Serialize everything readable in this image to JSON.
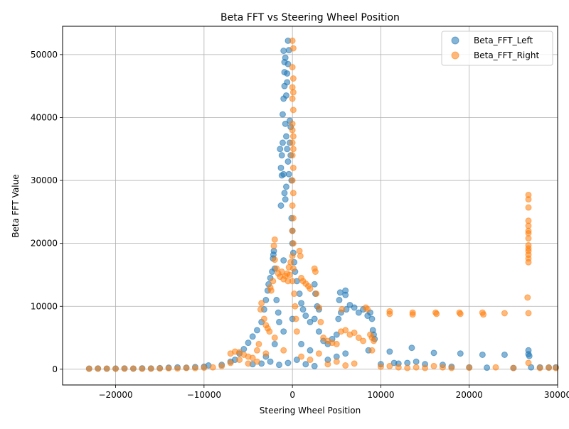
{
  "chart_data": {
    "type": "scatter",
    "title": "Beta FFT vs Steering Wheel Position",
    "xlabel": "Steering Wheel Position",
    "ylabel": "Beta FFT Value",
    "xlim": [
      -26000,
      30000
    ],
    "ylim": [
      -2500,
      54500
    ],
    "xticks": [
      -20000,
      -10000,
      0,
      10000,
      20000,
      30000
    ],
    "yticks": [
      0,
      10000,
      20000,
      30000,
      40000,
      50000
    ],
    "grid": true,
    "legend_position": "top-right",
    "series": [
      {
        "name": "Beta_FFT_Left",
        "color": "#1f77b4",
        "points": [
          [
            -23000,
            100
          ],
          [
            -22000,
            120
          ],
          [
            -21000,
            90
          ],
          [
            -20000,
            110
          ],
          [
            -19000,
            130
          ],
          [
            -18000,
            100
          ],
          [
            -17000,
            140
          ],
          [
            -16000,
            120
          ],
          [
            -15000,
            180
          ],
          [
            -14000,
            250
          ],
          [
            -13000,
            300
          ],
          [
            -12000,
            250
          ],
          [
            -11000,
            350
          ],
          [
            -10000,
            400
          ],
          [
            -9500,
            600
          ],
          [
            -8000,
            700
          ],
          [
            -7000,
            1200
          ],
          [
            -6500,
            1500
          ],
          [
            -6000,
            2500
          ],
          [
            -5500,
            3200
          ],
          [
            -5000,
            4200
          ],
          [
            -4500,
            5200
          ],
          [
            -4000,
            6200
          ],
          [
            -3500,
            7500
          ],
          [
            -3200,
            9500
          ],
          [
            -3000,
            11000
          ],
          [
            -2800,
            12500
          ],
          [
            -2700,
            13500
          ],
          [
            -2500,
            14500
          ],
          [
            -2300,
            15500
          ],
          [
            -2200,
            17600
          ],
          [
            -2150,
            18200
          ],
          [
            -2100,
            18800
          ],
          [
            -2000,
            16000
          ],
          [
            -1800,
            11000
          ],
          [
            -1600,
            9000
          ],
          [
            -1500,
            7500
          ],
          [
            -1300,
            26000
          ],
          [
            -1200,
            30800
          ],
          [
            -1100,
            40500
          ],
          [
            -1000,
            17300
          ],
          [
            -1000,
            43000
          ],
          [
            -900,
            47200
          ],
          [
            -900,
            45000
          ],
          [
            -1000,
            50600
          ],
          [
            -800,
            49500
          ],
          [
            -900,
            48800
          ],
          [
            -700,
            43500
          ],
          [
            -600,
            47000
          ],
          [
            -600,
            45600
          ],
          [
            -500,
            52200
          ],
          [
            -500,
            48500
          ],
          [
            -400,
            50700
          ],
          [
            -800,
            39000
          ],
          [
            -700,
            37000
          ],
          [
            -600,
            35000
          ],
          [
            -500,
            33000
          ],
          [
            -400,
            31000
          ],
          [
            -300,
            36000
          ],
          [
            -200,
            34000
          ],
          [
            -100,
            30000
          ],
          [
            -1100,
            36000
          ],
          [
            -1200,
            34000
          ],
          [
            -1300,
            32000
          ],
          [
            -1400,
            35000
          ],
          [
            -1000,
            31000
          ],
          [
            -900,
            28000
          ],
          [
            -800,
            27000
          ],
          [
            -700,
            29000
          ],
          [
            0,
            22000
          ],
          [
            0,
            20000
          ],
          [
            100,
            18500
          ],
          [
            200,
            17000
          ],
          [
            300,
            15500
          ],
          [
            500,
            14000
          ],
          [
            800,
            12000
          ],
          [
            1000,
            10500
          ],
          [
            1200,
            9500
          ],
          [
            1500,
            8500
          ],
          [
            2000,
            7500
          ],
          [
            2500,
            8000
          ],
          [
            3000,
            6000
          ],
          [
            3500,
            4500
          ],
          [
            4000,
            4000
          ],
          [
            4500,
            4800
          ],
          [
            5000,
            5500
          ],
          [
            5200,
            8000
          ],
          [
            5300,
            11000
          ],
          [
            5400,
            12200
          ],
          [
            5500,
            9000
          ],
          [
            6000,
            12500
          ],
          [
            6000,
            11800
          ],
          [
            6100,
            9500
          ],
          [
            6500,
            10200
          ],
          [
            7000,
            9800
          ],
          [
            7500,
            9000
          ],
          [
            8000,
            9500
          ],
          [
            8500,
            8500
          ],
          [
            8800,
            9000
          ],
          [
            9000,
            8000
          ],
          [
            9100,
            6200
          ],
          [
            9200,
            5500
          ],
          [
            9300,
            4800
          ],
          [
            8600,
            3000
          ],
          [
            6000,
            2500
          ],
          [
            5000,
            2000
          ],
          [
            4000,
            1500
          ],
          [
            10000,
            800
          ],
          [
            11000,
            2800
          ],
          [
            11500,
            1000
          ],
          [
            12000,
            900
          ],
          [
            13000,
            1000
          ],
          [
            13500,
            3400
          ],
          [
            14000,
            1200
          ],
          [
            15000,
            800
          ],
          [
            16000,
            2600
          ],
          [
            17000,
            700
          ],
          [
            18000,
            400
          ],
          [
            19000,
            2500
          ],
          [
            20000,
            300
          ],
          [
            21500,
            2300
          ],
          [
            22000,
            250
          ],
          [
            24000,
            2300
          ],
          [
            25000,
            200
          ],
          [
            26700,
            3000
          ],
          [
            26700,
            2400
          ],
          [
            26800,
            2100
          ],
          [
            27000,
            300
          ],
          [
            28000,
            300
          ],
          [
            29000,
            280
          ],
          [
            29800,
            300
          ],
          [
            -3000,
            2000
          ],
          [
            -2000,
            4000
          ],
          [
            -1000,
            6000
          ],
          [
            0,
            8000
          ],
          [
            1000,
            4000
          ],
          [
            2000,
            3000
          ],
          [
            -500,
            1000
          ],
          [
            500,
            1500
          ],
          [
            1500,
            800
          ],
          [
            2500,
            500
          ],
          [
            -1500,
            700
          ],
          [
            -2500,
            1200
          ],
          [
            -3500,
            900
          ],
          [
            -4500,
            800
          ],
          [
            3000,
            9500
          ],
          [
            2800,
            10000
          ],
          [
            2500,
            13500
          ],
          [
            2600,
            12000
          ],
          [
            -200,
            38500
          ],
          [
            -300,
            39500
          ],
          [
            -100,
            24000
          ]
        ]
      },
      {
        "name": "Beta_FFT_Right",
        "color": "#ff7f0e",
        "points": [
          [
            -23000,
            80
          ],
          [
            -22000,
            90
          ],
          [
            -21000,
            100
          ],
          [
            -20000,
            70
          ],
          [
            -19000,
            90
          ],
          [
            -18000,
            110
          ],
          [
            -17000,
            80
          ],
          [
            -16000,
            100
          ],
          [
            -15000,
            120
          ],
          [
            -14000,
            150
          ],
          [
            -13000,
            120
          ],
          [
            -12000,
            200
          ],
          [
            -11000,
            180
          ],
          [
            -10000,
            250
          ],
          [
            -9000,
            300
          ],
          [
            -8000,
            500
          ],
          [
            -7000,
            2500
          ],
          [
            -6500,
            2800
          ],
          [
            -6000,
            2700
          ],
          [
            -5500,
            2300
          ],
          [
            -5000,
            2000
          ],
          [
            -4500,
            1800
          ],
          [
            -4000,
            3000
          ],
          [
            -3800,
            4000
          ],
          [
            -3600,
            9500
          ],
          [
            -3500,
            10500
          ],
          [
            -3200,
            8000
          ],
          [
            -3000,
            7000
          ],
          [
            -2800,
            6500
          ],
          [
            -2600,
            6000
          ],
          [
            -2500,
            13000
          ],
          [
            -2400,
            12500
          ],
          [
            -2200,
            14000
          ],
          [
            -2100,
            19600
          ],
          [
            -2000,
            20600
          ],
          [
            -2000,
            17400
          ],
          [
            -1800,
            16000
          ],
          [
            -1600,
            15200
          ],
          [
            -1400,
            14700
          ],
          [
            -1200,
            15500
          ],
          [
            -1000,
            14300
          ],
          [
            -800,
            14800
          ],
          [
            -600,
            15200
          ],
          [
            -500,
            14000
          ],
          [
            -400,
            16200
          ],
          [
            -300,
            15000
          ],
          [
            -200,
            17000
          ],
          [
            0,
            52200
          ],
          [
            100,
            51000
          ],
          [
            0,
            48000
          ],
          [
            100,
            46200
          ],
          [
            0,
            44800
          ],
          [
            100,
            44000
          ],
          [
            0,
            43000
          ],
          [
            100,
            41200
          ],
          [
            0,
            39000
          ],
          [
            0,
            38000
          ],
          [
            100,
            37000
          ],
          [
            0,
            36000
          ],
          [
            100,
            35000
          ],
          [
            0,
            34000
          ],
          [
            100,
            32000
          ],
          [
            0,
            30000
          ],
          [
            100,
            28000
          ],
          [
            0,
            26000
          ],
          [
            100,
            24000
          ],
          [
            0,
            22000
          ],
          [
            100,
            20000
          ],
          [
            0,
            18000
          ],
          [
            100,
            16000
          ],
          [
            0,
            14000
          ],
          [
            200,
            12000
          ],
          [
            300,
            10000
          ],
          [
            400,
            8000
          ],
          [
            500,
            6000
          ],
          [
            800,
            18800
          ],
          [
            900,
            18000
          ],
          [
            1000,
            14500
          ],
          [
            1200,
            14000
          ],
          [
            1500,
            13600
          ],
          [
            1800,
            13200
          ],
          [
            2000,
            12800
          ],
          [
            2500,
            16000
          ],
          [
            2600,
            15500
          ],
          [
            2700,
            12000
          ],
          [
            3000,
            9800
          ],
          [
            3200,
            7500
          ],
          [
            3500,
            5000
          ],
          [
            4000,
            4500
          ],
          [
            4500,
            4200
          ],
          [
            5000,
            4000
          ],
          [
            5500,
            6000
          ],
          [
            5600,
            9500
          ],
          [
            6000,
            6200
          ],
          [
            6500,
            5500
          ],
          [
            7000,
            5800
          ],
          [
            7500,
            5000
          ],
          [
            8000,
            4500
          ],
          [
            8300,
            9800
          ],
          [
            8500,
            9500
          ],
          [
            8800,
            5500
          ],
          [
            9000,
            5000
          ],
          [
            9200,
            4500
          ],
          [
            9000,
            3000
          ],
          [
            11000,
            9200
          ],
          [
            11000,
            8800
          ],
          [
            13600,
            9000
          ],
          [
            13600,
            8700
          ],
          [
            16200,
            9000
          ],
          [
            16300,
            8800
          ],
          [
            18900,
            9000
          ],
          [
            19000,
            8800
          ],
          [
            21500,
            9000
          ],
          [
            21600,
            8700
          ],
          [
            24000,
            8900
          ],
          [
            26700,
            8900
          ],
          [
            26600,
            11400
          ],
          [
            26700,
            17000
          ],
          [
            26700,
            17600
          ],
          [
            26700,
            18200
          ],
          [
            26700,
            18800
          ],
          [
            26700,
            19200
          ],
          [
            26700,
            19700
          ],
          [
            26700,
            20800
          ],
          [
            26700,
            21600
          ],
          [
            26700,
            22000
          ],
          [
            26700,
            22800
          ],
          [
            26700,
            23600
          ],
          [
            26700,
            25700
          ],
          [
            26700,
            27000
          ],
          [
            26700,
            27700
          ],
          [
            26700,
            1000
          ],
          [
            25000,
            200
          ],
          [
            23000,
            300
          ],
          [
            20000,
            250
          ],
          [
            18000,
            200
          ],
          [
            17000,
            300
          ],
          [
            16000,
            500
          ],
          [
            15000,
            200
          ],
          [
            14000,
            300
          ],
          [
            13000,
            200
          ],
          [
            12000,
            300
          ],
          [
            11000,
            500
          ],
          [
            10000,
            400
          ],
          [
            28000,
            200
          ],
          [
            29000,
            250
          ],
          [
            29800,
            200
          ],
          [
            -1000,
            3000
          ],
          [
            -2000,
            5000
          ],
          [
            -3000,
            2500
          ],
          [
            1000,
            2000
          ],
          [
            2000,
            1500
          ],
          [
            3000,
            2500
          ],
          [
            4000,
            800
          ],
          [
            5000,
            1200
          ],
          [
            6000,
            600
          ],
          [
            7000,
            900
          ],
          [
            -6000,
            1500
          ],
          [
            -5000,
            900
          ],
          [
            -7000,
            1000
          ],
          [
            -4000,
            1200
          ]
        ]
      }
    ]
  }
}
